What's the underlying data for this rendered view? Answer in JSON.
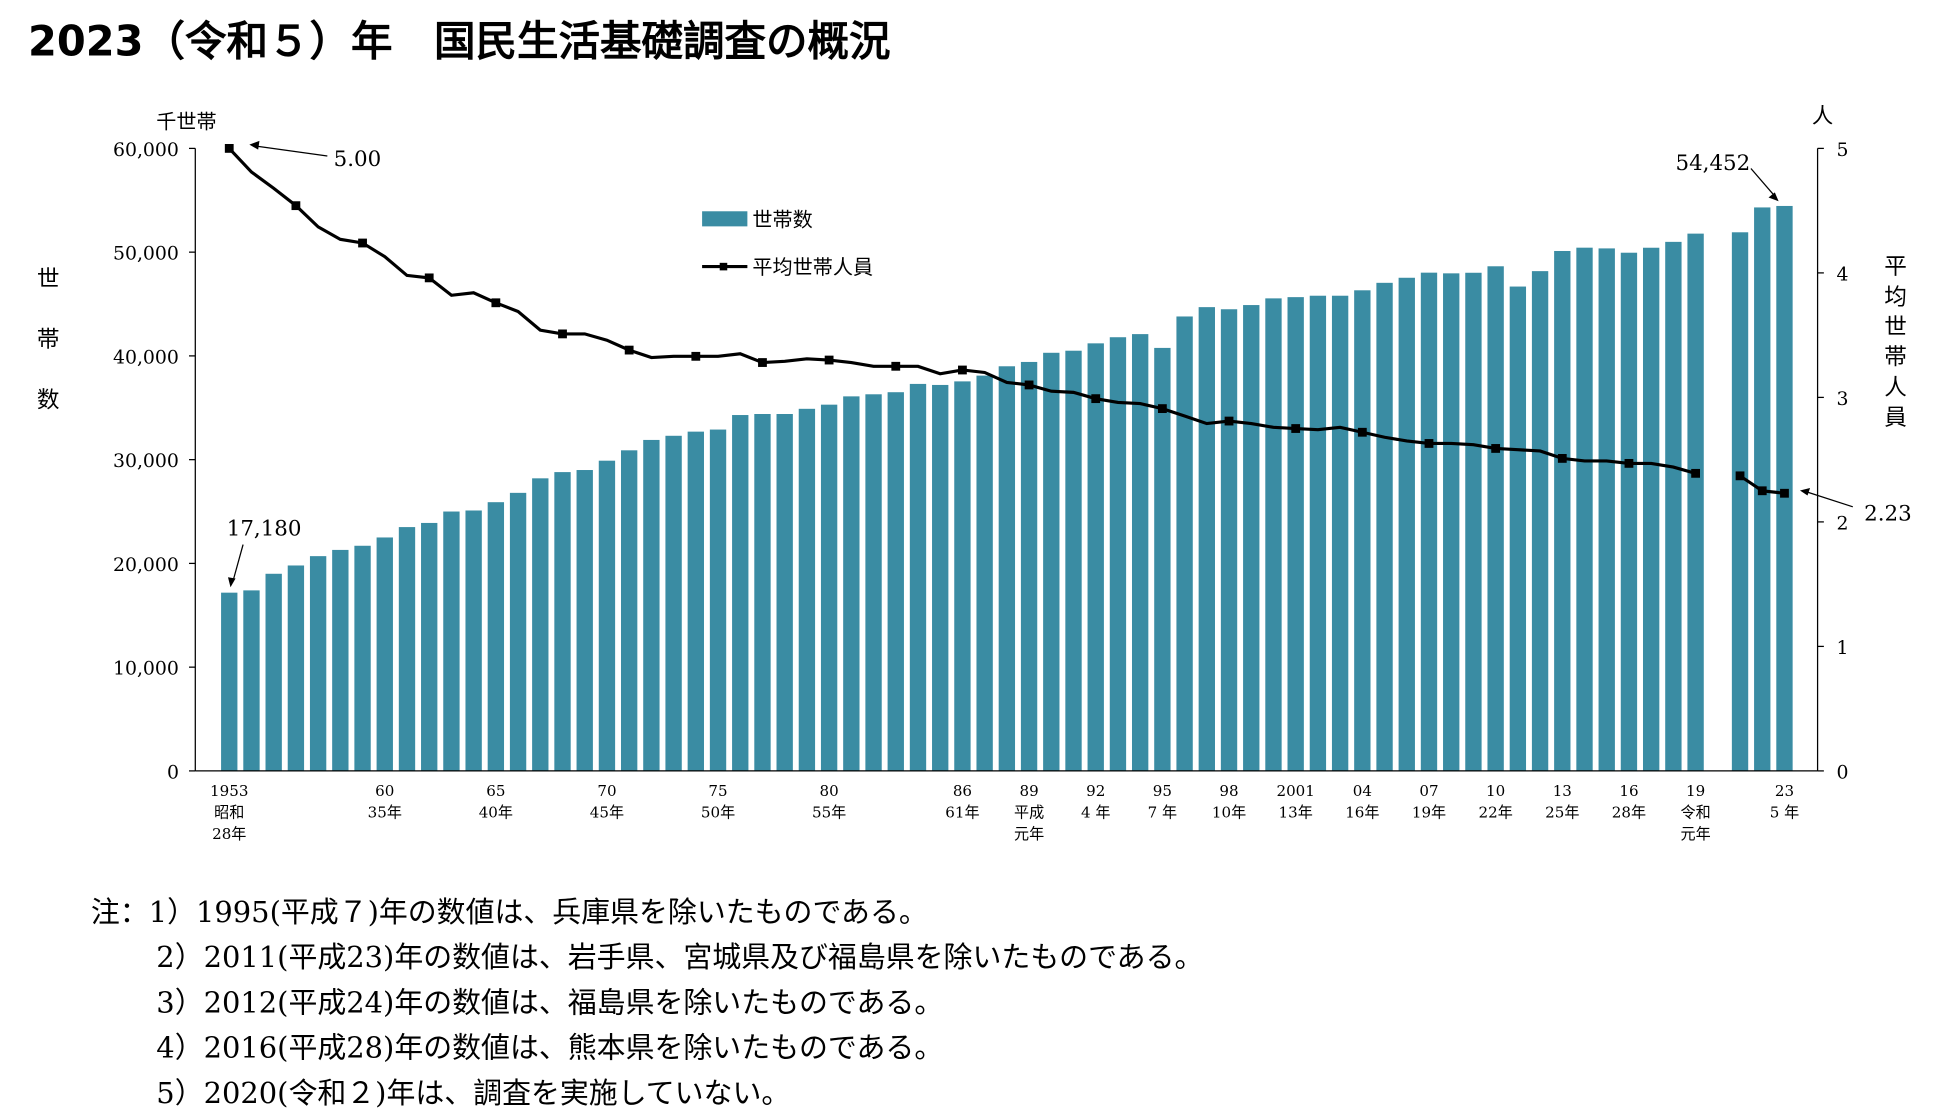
{
  "title": "2023（令和５）年　国民生活基礎調査の概況",
  "chart_data": {
    "type": "bar+line",
    "left_axis": {
      "unit": "千世帯",
      "label": "世帯数",
      "ylim": [
        0,
        60000
      ],
      "ticks": [
        "0",
        "10,000",
        "20,000",
        "30,000",
        "40,000",
        "50,000",
        "60,000"
      ]
    },
    "right_axis": {
      "unit": "人",
      "label": "平均世帯人員",
      "ylim": [
        0,
        5
      ],
      "ticks": [
        "0",
        "1",
        "2",
        "3",
        "4",
        "5"
      ]
    },
    "legend": {
      "placement": "top-center",
      "bar": "世帯数",
      "line": "平均世帯人員"
    },
    "colors": {
      "bar": "#3a8ca3",
      "line": "#000000"
    },
    "x": [
      1953,
      1954,
      1955,
      1956,
      1957,
      1958,
      1959,
      1960,
      1961,
      1962,
      1963,
      1964,
      1965,
      1966,
      1967,
      1968,
      1969,
      1970,
      1971,
      1972,
      1973,
      1974,
      1975,
      1976,
      1977,
      1978,
      1979,
      1980,
      1981,
      1982,
      1983,
      1984,
      1985,
      1986,
      1987,
      1988,
      1989,
      1990,
      1991,
      1992,
      1993,
      1994,
      1995,
      1996,
      1997,
      1998,
      1999,
      2000,
      2001,
      2002,
      2003,
      2004,
      2005,
      2006,
      2007,
      2008,
      2009,
      2010,
      2011,
      2012,
      2013,
      2014,
      2015,
      2016,
      2017,
      2018,
      2019,
      2021,
      2022,
      2023
    ],
    "series": [
      {
        "name": "世帯数",
        "type": "bar",
        "values": [
          17180,
          17400,
          19000,
          19800,
          20700,
          21300,
          21700,
          22500,
          23500,
          23900,
          25000,
          25100,
          25900,
          26800,
          28200,
          28800,
          29000,
          29900,
          30900,
          31900,
          32300,
          32700,
          32900,
          34300,
          34400,
          34400,
          34900,
          35300,
          36100,
          36300,
          36500,
          37300,
          37200,
          37544,
          38100,
          39000,
          39417,
          40300,
          40500,
          41210,
          41800,
          42100,
          40770,
          43800,
          44700,
          44496,
          44900,
          45545,
          45664,
          45800,
          45800,
          46323,
          47043,
          47531,
          48023,
          47957,
          48013,
          48638,
          46684,
          48170,
          50112,
          50431,
          50361,
          49945,
          50425,
          50991,
          51785,
          51914,
          54310,
          54452
        ]
      },
      {
        "name": "平均世帯人員",
        "type": "line",
        "values": [
          5.0,
          4.81,
          4.68,
          4.54,
          4.37,
          4.27,
          4.24,
          4.13,
          3.98,
          3.96,
          3.82,
          3.84,
          3.76,
          3.69,
          3.54,
          3.51,
          3.51,
          3.46,
          3.38,
          3.32,
          3.33,
          3.33,
          3.33,
          3.35,
          3.28,
          3.29,
          3.31,
          3.3,
          3.28,
          3.25,
          3.25,
          3.25,
          3.19,
          3.22,
          3.2,
          3.12,
          3.1,
          3.05,
          3.04,
          2.99,
          2.96,
          2.95,
          2.91,
          2.85,
          2.79,
          2.81,
          2.79,
          2.76,
          2.75,
          2.74,
          2.76,
          2.72,
          2.68,
          2.65,
          2.63,
          2.63,
          2.62,
          2.59,
          2.58,
          2.57,
          2.51,
          2.49,
          2.49,
          2.47,
          2.47,
          2.44,
          2.39,
          2.37,
          2.25,
          2.23
        ]
      }
    ],
    "x_tick_labels": [
      {
        "year": 1953,
        "lines": [
          "1953",
          "昭和",
          "28年"
        ]
      },
      {
        "year": 1960,
        "lines": [
          "60",
          "35年"
        ]
      },
      {
        "year": 1965,
        "lines": [
          "65",
          "40年"
        ]
      },
      {
        "year": 1970,
        "lines": [
          "70",
          "45年"
        ]
      },
      {
        "year": 1975,
        "lines": [
          "75",
          "50年"
        ]
      },
      {
        "year": 1980,
        "lines": [
          "80",
          "55年"
        ]
      },
      {
        "year": 1986,
        "lines": [
          "86",
          "61年"
        ]
      },
      {
        "year": 1989,
        "lines": [
          "89",
          "平成",
          "元年"
        ]
      },
      {
        "year": 1992,
        "lines": [
          "92",
          "4 年"
        ]
      },
      {
        "year": 1995,
        "lines": [
          "95",
          "7 年"
        ]
      },
      {
        "year": 1998,
        "lines": [
          "98",
          "10年"
        ]
      },
      {
        "year": 2001,
        "lines": [
          "2001",
          "13年"
        ]
      },
      {
        "year": 2004,
        "lines": [
          "04",
          "16年"
        ]
      },
      {
        "year": 2007,
        "lines": [
          "07",
          "19年"
        ]
      },
      {
        "year": 2010,
        "lines": [
          "10",
          "22年"
        ]
      },
      {
        "year": 2013,
        "lines": [
          "13",
          "25年"
        ]
      },
      {
        "year": 2016,
        "lines": [
          "16",
          "28年"
        ]
      },
      {
        "year": 2019,
        "lines": [
          "19",
          "令和",
          "元年"
        ]
      },
      {
        "year": 2023,
        "lines": [
          "23",
          "5 年"
        ]
      }
    ],
    "annotations": {
      "first_bar": "17,180",
      "first_line": "5.00",
      "last_bar": "54,452",
      "last_line": "2.23"
    }
  },
  "notes": [
    "注：1）1995(平成７)年の数値は、兵庫県を除いたものである。",
    "2）2011(平成23)年の数値は、岩手県、宮城県及び福島県を除いたものである。",
    "3）2012(平成24)年の数値は、福島県を除いたものである。",
    "4）2016(平成28)年の数値は、熊本県を除いたものである。",
    "5）2020(令和２)年は、調査を実施していない。"
  ]
}
